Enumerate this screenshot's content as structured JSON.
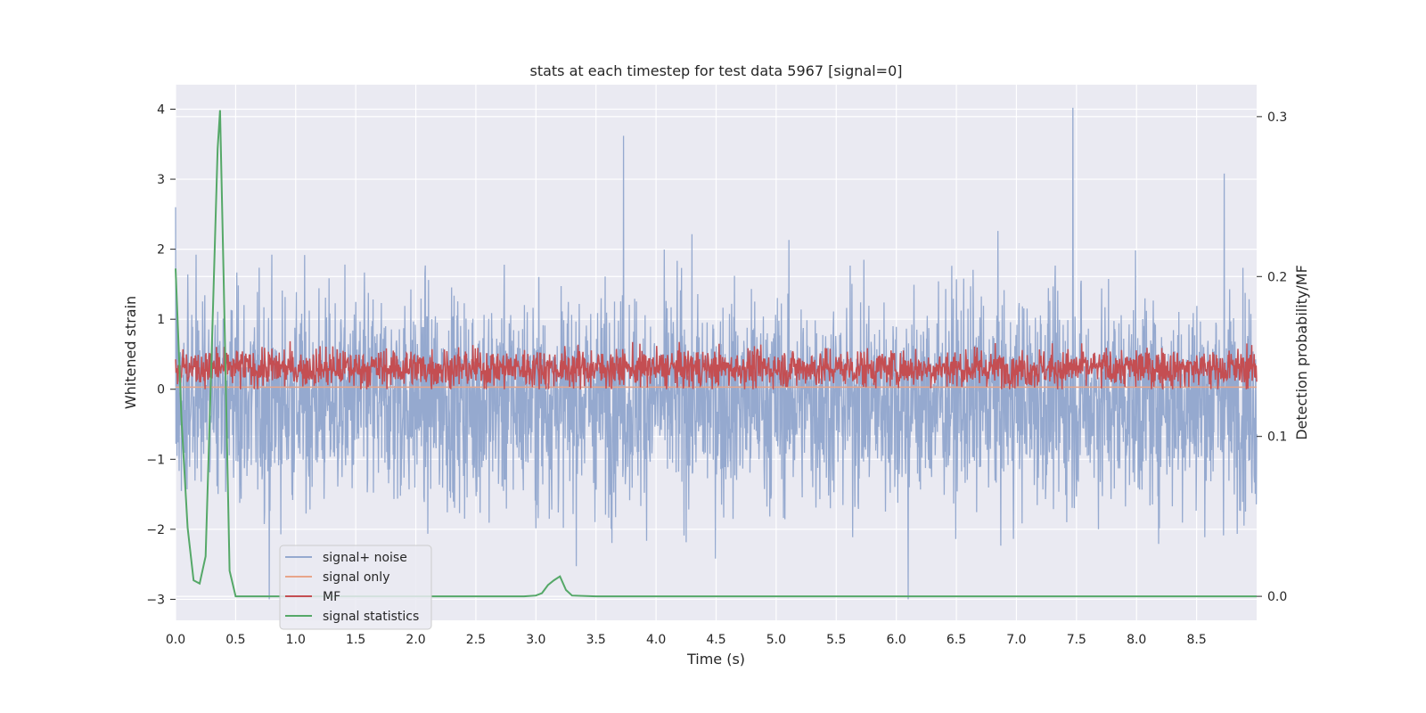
{
  "chart_data": {
    "type": "line",
    "title": "stats at each timestep for test data 5967 [signal=0]",
    "xlabel": "Time (s)",
    "ylabel_left": "Whitened strain",
    "ylabel_right": "Detection probability/MF",
    "xlim": [
      0.0,
      9.0
    ],
    "ylim_left": [
      -3.3,
      4.35
    ],
    "ylim_right": [
      -0.015,
      0.32
    ],
    "x_ticks": [
      "0.0",
      "0.5",
      "1.0",
      "1.5",
      "2.0",
      "2.5",
      "3.0",
      "3.5",
      "4.0",
      "4.5",
      "5.0",
      "5.5",
      "6.0",
      "6.5",
      "7.0",
      "7.5",
      "8.0",
      "8.5"
    ],
    "y_left_ticks": [
      "−3",
      "−2",
      "−1",
      "0",
      "1",
      "2",
      "3",
      "4"
    ],
    "y_right_ticks": [
      "0.0",
      "0.1",
      "0.2",
      "0.3"
    ],
    "grid": true,
    "legend_position": "lower-left",
    "colors": {
      "background": "#eaeaf2",
      "grid": "#ffffff",
      "signal_noise": "#95a9cf",
      "signal_only": "#e8a58a",
      "mf": "#c44e52",
      "signal_statistics": "#55a868"
    },
    "series": [
      {
        "name": "signal+ noise",
        "axis": "left",
        "description_values": {
          "typical_range": [
            -1.5,
            2.0
          ],
          "peak_values": {
            "0.78": -3.0,
            "3.73": 3.62,
            "6.10": -3.0,
            "7.47": 4.02,
            "8.73": 3.08
          }
        }
      },
      {
        "name": "signal only",
        "axis": "left",
        "x": [
          0.0,
          9.0
        ],
        "y": [
          0.03,
          0.03
        ]
      },
      {
        "name": "MF",
        "axis": "left",
        "description_values": {
          "typical_range": [
            0.0,
            0.7
          ],
          "mean": 0.3
        }
      },
      {
        "name": "signal statistics",
        "axis": "right",
        "x": [
          0.0,
          0.05,
          0.1,
          0.15,
          0.2,
          0.25,
          0.3,
          0.35,
          0.37,
          0.4,
          0.45,
          0.5,
          1.0,
          2.0,
          2.9,
          3.0,
          3.05,
          3.1,
          3.15,
          3.2,
          3.25,
          3.3,
          3.5,
          4.0,
          9.0
        ],
        "y": [
          0.205,
          0.11,
          0.043,
          0.01,
          0.008,
          0.025,
          0.15,
          0.28,
          0.304,
          0.2,
          0.016,
          0.0,
          0.0,
          0.0,
          0.0,
          0.0005,
          0.002,
          0.007,
          0.01,
          0.0125,
          0.004,
          0.0005,
          0.0,
          0.0,
          0.0
        ]
      }
    ]
  }
}
